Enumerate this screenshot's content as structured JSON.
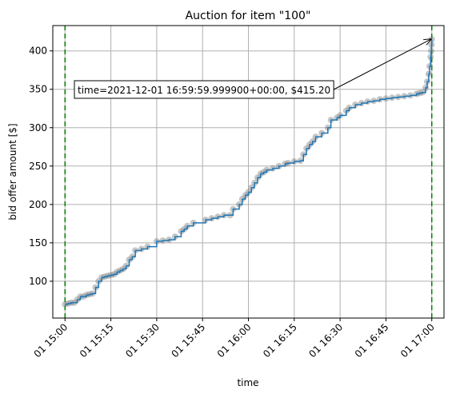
{
  "chart_data": {
    "type": "line",
    "title": "Auction for item \"100\"",
    "xlabel": "time",
    "ylabel": "bid offer amount [$]",
    "x_ticks": [
      "01 15:00",
      "01 15:15",
      "01 15:30",
      "01 15:45",
      "01 16:00",
      "01 16:15",
      "01 16:30",
      "01 16:45",
      "01 17:00"
    ],
    "y_ticks": [
      100,
      150,
      200,
      250,
      300,
      350,
      400
    ],
    "xlim_minutes": [
      -4,
      124
    ],
    "ylim": [
      52,
      433
    ],
    "grid": true,
    "vlines": [
      {
        "minute": 0,
        "color": "#008000",
        "style": "dashed"
      },
      {
        "minute": 120,
        "color": "#008000",
        "style": "dashed"
      }
    ],
    "annotation": {
      "text": "time=2021-12-01 16:59:59.999900+00:00, $415.20",
      "point_minute": 120,
      "point_value": 415.2
    },
    "series": [
      {
        "color": "#1f77b4",
        "points": [
          [
            0,
            70
          ],
          [
            1,
            71
          ],
          [
            2,
            72
          ],
          [
            3,
            72
          ],
          [
            4,
            76
          ],
          [
            5,
            80
          ],
          [
            6,
            80
          ],
          [
            7,
            82
          ],
          [
            8,
            83
          ],
          [
            9,
            84
          ],
          [
            10,
            92
          ],
          [
            11,
            100
          ],
          [
            12,
            105
          ],
          [
            13,
            106
          ],
          [
            14,
            107
          ],
          [
            15,
            108
          ],
          [
            16,
            109
          ],
          [
            17,
            112
          ],
          [
            18,
            114
          ],
          [
            19,
            116
          ],
          [
            20,
            120
          ],
          [
            21,
            128
          ],
          [
            22,
            132
          ],
          [
            23,
            140
          ],
          [
            25,
            142
          ],
          [
            27,
            145
          ],
          [
            30,
            152
          ],
          [
            32,
            153
          ],
          [
            34,
            154
          ],
          [
            36,
            158
          ],
          [
            38,
            165
          ],
          [
            39,
            168
          ],
          [
            40,
            172
          ],
          [
            42,
            176
          ],
          [
            46,
            180
          ],
          [
            48,
            182
          ],
          [
            50,
            184
          ],
          [
            52,
            186
          ],
          [
            54,
            186
          ],
          [
            55,
            194
          ],
          [
            57,
            200
          ],
          [
            58,
            207
          ],
          [
            59,
            212
          ],
          [
            60,
            216
          ],
          [
            61,
            222
          ],
          [
            62,
            228
          ],
          [
            63,
            235
          ],
          [
            64,
            240
          ],
          [
            65,
            242
          ],
          [
            66,
            245
          ],
          [
            68,
            247
          ],
          [
            70,
            250
          ],
          [
            72,
            253
          ],
          [
            73,
            254
          ],
          [
            75,
            256
          ],
          [
            77,
            257
          ],
          [
            78,
            265
          ],
          [
            79,
            273
          ],
          [
            80,
            278
          ],
          [
            81,
            282
          ],
          [
            82,
            288
          ],
          [
            84,
            293
          ],
          [
            86,
            300
          ],
          [
            87,
            310
          ],
          [
            89,
            313
          ],
          [
            90,
            316
          ],
          [
            92,
            322
          ],
          [
            93,
            326
          ],
          [
            95,
            330
          ],
          [
            97,
            332
          ],
          [
            99,
            334
          ],
          [
            101,
            335
          ],
          [
            103,
            337
          ],
          [
            105,
            338
          ],
          [
            107,
            339
          ],
          [
            109,
            340
          ],
          [
            111,
            341
          ],
          [
            113,
            342
          ],
          [
            115,
            344
          ],
          [
            116,
            345
          ],
          [
            117,
            346
          ],
          [
            118,
            352
          ],
          [
            118.5,
            360
          ],
          [
            119,
            370
          ],
          [
            119.3,
            380
          ],
          [
            119.6,
            392
          ],
          [
            119.8,
            400
          ],
          [
            119.9,
            408
          ],
          [
            120,
            415.2
          ]
        ]
      }
    ]
  }
}
